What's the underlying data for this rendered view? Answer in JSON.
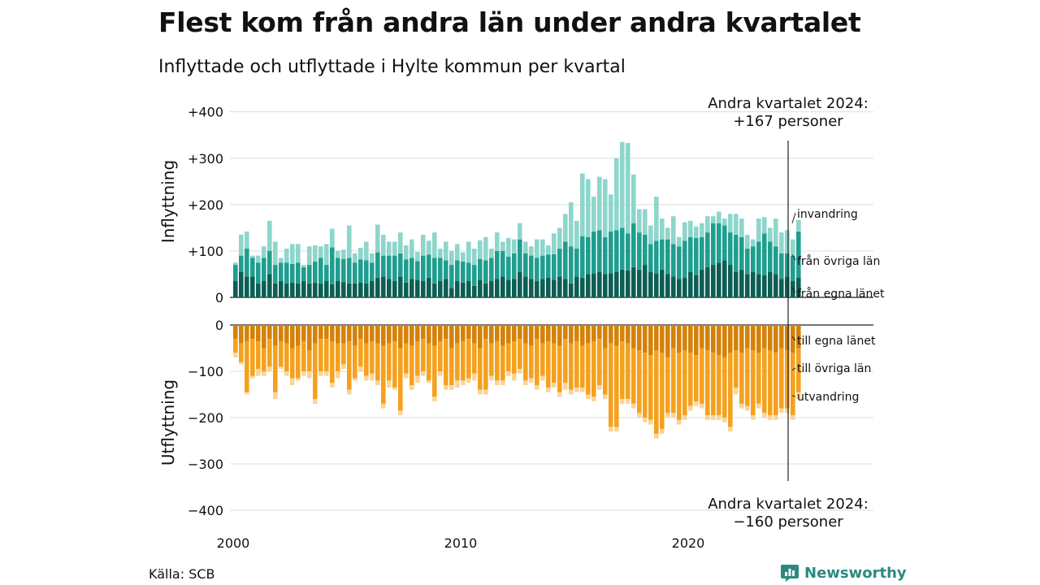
{
  "header": {
    "title": "Flest kom från andra län under andra kvartalet",
    "subtitle": "Inflyttade och utflyttade i Hylte kommun per kvartal"
  },
  "footer": {
    "source": "Källa: SCB",
    "logo_text": "Newsworthy"
  },
  "colors": {
    "egna_in": "#0d5e55",
    "ovriga_in": "#1f9e8f",
    "invandring": "#8ed6cc",
    "egna_ut": "#d4820a",
    "ovriga_ut": "#f5a11e",
    "utvandring": "#fad59a",
    "grid": "#dddddd",
    "axis": "#222222"
  },
  "chart_data": {
    "type": "bar",
    "stacked": true,
    "grid": true,
    "x_start": "2000 Q1",
    "x_ticks": [
      "2000",
      "2010",
      "2020"
    ],
    "in_panel": {
      "ylabel": "Inflyttning",
      "ylim": [
        0,
        400
      ],
      "ticks": [
        {
          "v": 0,
          "t": "0"
        },
        {
          "v": 100,
          "t": "+100"
        },
        {
          "v": 200,
          "t": "+200"
        },
        {
          "v": 300,
          "t": "+300"
        },
        {
          "v": 400,
          "t": "+400"
        }
      ],
      "annotation_line1": "Andra kvartalet 2024:",
      "annotation_line2": "+167 personer",
      "series": [
        {
          "name": "från egna länet",
          "values": [
            35,
            55,
            45,
            45,
            30,
            35,
            50,
            30,
            35,
            30,
            32,
            30,
            35,
            30,
            32,
            30,
            35,
            28,
            35,
            33,
            30,
            30,
            32,
            30,
            35,
            42,
            45,
            40,
            35,
            45,
            32,
            40,
            38,
            35,
            42,
            30,
            35,
            40,
            20,
            35,
            32,
            35,
            25,
            38,
            30,
            35,
            40,
            45,
            38,
            40,
            55,
            45,
            40,
            35,
            40,
            42,
            38,
            45,
            40,
            30,
            45,
            42,
            50,
            52,
            55,
            50,
            52,
            55,
            60,
            58,
            65,
            60,
            70,
            55,
            52,
            60,
            50,
            45,
            40,
            42,
            55,
            48,
            60,
            65,
            70,
            75,
            80,
            70,
            55,
            60,
            50,
            55,
            50,
            48,
            55,
            50,
            40,
            45,
            35,
            42
          ]
        },
        {
          "name": "från övriga län",
          "values": [
            35,
            35,
            60,
            40,
            45,
            50,
            50,
            40,
            40,
            45,
            40,
            45,
            30,
            40,
            45,
            55,
            35,
            80,
            50,
            50,
            55,
            45,
            50,
            50,
            40,
            55,
            45,
            50,
            55,
            50,
            50,
            45,
            40,
            55,
            50,
            55,
            50,
            40,
            50,
            45,
            45,
            40,
            45,
            45,
            50,
            50,
            60,
            55,
            50,
            55,
            70,
            50,
            50,
            50,
            50,
            50,
            55,
            60,
            80,
            80,
            60,
            90,
            80,
            90,
            90,
            80,
            90,
            90,
            90,
            80,
            95,
            80,
            65,
            60,
            70,
            65,
            75,
            70,
            70,
            80,
            75,
            80,
            70,
            75,
            90,
            85,
            75,
            70,
            80,
            70,
            55,
            55,
            70,
            90,
            65,
            60,
            55,
            50,
            55,
            100
          ]
        },
        {
          "name": "invandring",
          "values": [
            5,
            45,
            37,
            5,
            15,
            25,
            65,
            50,
            10,
            30,
            43,
            40,
            5,
            40,
            35,
            25,
            45,
            40,
            15,
            20,
            70,
            20,
            25,
            40,
            20,
            60,
            45,
            30,
            30,
            45,
            30,
            40,
            20,
            45,
            30,
            55,
            20,
            40,
            30,
            35,
            20,
            45,
            35,
            40,
            50,
            20,
            40,
            20,
            40,
            30,
            35,
            25,
            20,
            40,
            35,
            20,
            45,
            45,
            60,
            95,
            60,
            135,
            125,
            75,
            115,
            125,
            80,
            155,
            185,
            195,
            105,
            50,
            55,
            40,
            95,
            45,
            25,
            60,
            20,
            40,
            35,
            25,
            30,
            35,
            15,
            25,
            15,
            40,
            45,
            40,
            30,
            15,
            50,
            35,
            30,
            60,
            45,
            50,
            35,
            25
          ]
        }
      ]
    },
    "out_panel": {
      "ylabel": "Utflyttning",
      "ylim": [
        -400,
        0
      ],
      "ticks": [
        {
          "v": 0,
          "t": "0"
        },
        {
          "v": -100,
          "t": "−100"
        },
        {
          "v": -200,
          "t": "−200"
        },
        {
          "v": -300,
          "t": "−300"
        },
        {
          "v": -400,
          "t": "−400"
        }
      ],
      "annotation_line1": "Andra kvartalet 2024:",
      "annotation_line2": "−160 personer",
      "series": [
        {
          "name": "till egna länet",
          "values": [
            -30,
            -40,
            -35,
            -30,
            -35,
            -50,
            -30,
            -45,
            -35,
            -40,
            -50,
            -45,
            -35,
            -55,
            -40,
            -30,
            -30,
            -35,
            -40,
            -40,
            -35,
            -45,
            -30,
            -40,
            -35,
            -40,
            -45,
            -40,
            -35,
            -50,
            -40,
            -45,
            -35,
            -30,
            -40,
            -45,
            -35,
            -30,
            -50,
            -40,
            -35,
            -30,
            -40,
            -50,
            -30,
            -40,
            -35,
            -45,
            -40,
            -35,
            -30,
            -40,
            -45,
            -30,
            -40,
            -35,
            -40,
            -45,
            -30,
            -40,
            -35,
            -45,
            -40,
            -35,
            -30,
            -50,
            -40,
            -45,
            -35,
            -40,
            -50,
            -55,
            -60,
            -65,
            -55,
            -60,
            -70,
            -50,
            -60,
            -55,
            -60,
            -65,
            -50,
            -55,
            -60,
            -65,
            -70,
            -60,
            -55,
            -60,
            -50,
            -55,
            -60,
            -50,
            -55,
            -60,
            -50,
            -55,
            -60,
            -50
          ]
        },
        {
          "name": "till övriga län",
          "values": [
            -30,
            -40,
            -110,
            -80,
            -60,
            -50,
            -60,
            -100,
            -55,
            -60,
            -65,
            -70,
            -65,
            -45,
            -120,
            -70,
            -70,
            -90,
            -60,
            -45,
            -105,
            -70,
            -60,
            -70,
            -70,
            -80,
            -125,
            -80,
            -100,
            -135,
            -65,
            -85,
            -75,
            -70,
            -80,
            -110,
            -65,
            -100,
            -80,
            -80,
            -85,
            -85,
            -65,
            -90,
            -110,
            -70,
            -85,
            -75,
            -60,
            -70,
            -65,
            -80,
            -70,
            -100,
            -70,
            -100,
            -85,
            -100,
            -95,
            -100,
            -100,
            -90,
            -110,
            -120,
            -100,
            -100,
            -180,
            -175,
            -125,
            -120,
            -120,
            -135,
            -140,
            -140,
            -180,
            -165,
            -120,
            -140,
            -145,
            -140,
            -115,
            -100,
            -120,
            -140,
            -135,
            -130,
            -130,
            -160,
            -80,
            -110,
            -125,
            -140,
            -110,
            -140,
            -140,
            -135,
            -130,
            -125,
            -135,
            -95
          ]
        },
        {
          "name": "utvandring",
          "values": [
            -10,
            -5,
            -5,
            -5,
            -15,
            -10,
            -10,
            -15,
            -5,
            -10,
            -15,
            -5,
            -10,
            -15,
            -10,
            -10,
            -10,
            -10,
            -15,
            -10,
            -10,
            -5,
            -10,
            -10,
            -15,
            -10,
            -10,
            -15,
            -5,
            -10,
            -10,
            -10,
            -15,
            -10,
            -5,
            -10,
            -10,
            -10,
            -10,
            -15,
            -10,
            -10,
            -15,
            -10,
            -10,
            -10,
            -10,
            -10,
            -10,
            -15,
            -10,
            -10,
            -10,
            -10,
            -10,
            -10,
            -10,
            -10,
            -15,
            -10,
            -10,
            -10,
            -10,
            -10,
            -10,
            -10,
            -10,
            -10,
            -10,
            -10,
            -10,
            -10,
            -10,
            -10,
            -10,
            -10,
            -10,
            -10,
            -10,
            -10,
            -10,
            -10,
            -10,
            -10,
            -10,
            -10,
            -10,
            -10,
            -15,
            -10,
            -10,
            -10,
            -10,
            -10,
            -10,
            -10,
            -10,
            -10,
            -10,
            -15
          ]
        }
      ]
    }
  }
}
